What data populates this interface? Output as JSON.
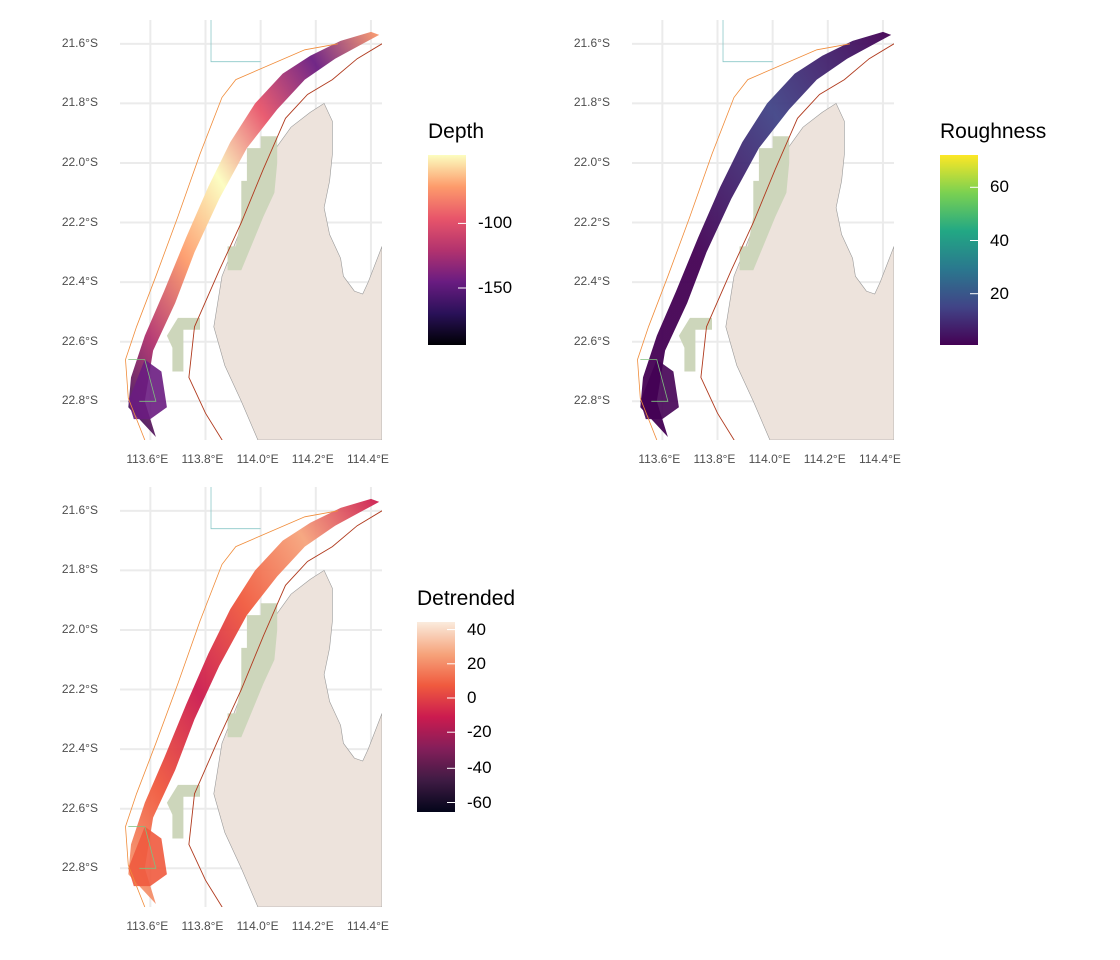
{
  "panels": [
    {
      "id": "depth",
      "legend_title": "Depth",
      "legend_labels": [
        "-100",
        "-150"
      ],
      "palette": [
        "#fcfdbf",
        "#fd9b6b",
        "#e8556a",
        "#b3336e",
        "#6a1c81",
        "#2a1159",
        "#000004"
      ]
    },
    {
      "id": "roughness",
      "legend_title": "Roughness",
      "legend_labels": [
        "60",
        "40",
        "20"
      ],
      "palette": [
        "#fde725",
        "#7ad151",
        "#22a884",
        "#2a788e",
        "#414487",
        "#440154"
      ]
    },
    {
      "id": "detrended",
      "legend_title": "Detrended",
      "legend_labels": [
        "40",
        "20",
        "0",
        "-20",
        "-40",
        "-60"
      ],
      "palette": [
        "#faebdd",
        "#f6a47c",
        "#f05a3e",
        "#cb1b4f",
        "#841e5a",
        "#3f1b44",
        "#03051a"
      ]
    }
  ],
  "axes": {
    "y_ticks": [
      "21.6°S",
      "21.8°S",
      "22.0°S",
      "22.2°S",
      "22.4°S",
      "22.6°S",
      "22.8°S"
    ],
    "x_ticks": [
      "113.6°E",
      "113.8°E",
      "114.0°E",
      "114.2°E",
      "114.4°E"
    ]
  },
  "map_colors": {
    "land": "#ede3dc",
    "protected_area": "#cdd6bb",
    "coastline": "#9a9a9a",
    "boundary_orange": "#f08c3a",
    "boundary_darkred": "#b03a1e",
    "boundary_teal": "#8cc8c8",
    "boundary_green": "#7fbf7f",
    "grid": "#ebebeb"
  }
}
